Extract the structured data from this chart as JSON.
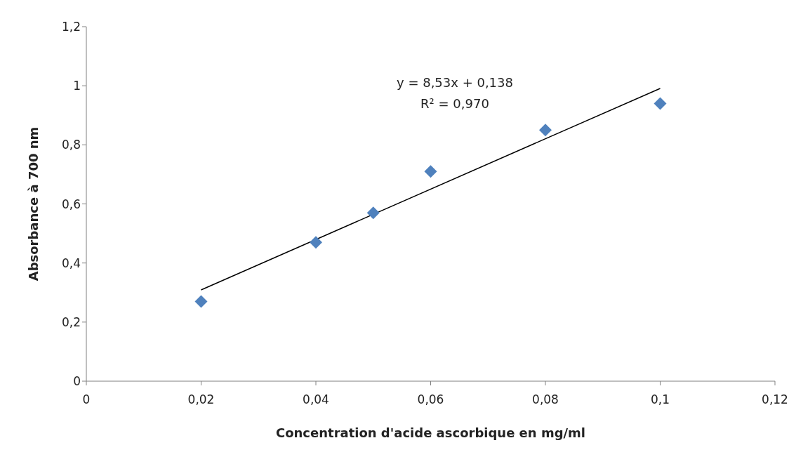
{
  "chart_data": {
    "type": "scatter",
    "xlabel": "Concentration d'acide  ascorbique  en mg/ml",
    "ylabel": "Absorbance  à 700 nm",
    "annotations": [
      "y = 8,53x + 0,138",
      "R² = 0,970"
    ],
    "x": [
      0.02,
      0.04,
      0.05,
      0.06,
      0.08,
      0.1
    ],
    "series": [
      {
        "color": "#4f81bd",
        "values": [
          0.27,
          0.47,
          0.57,
          0.71,
          0.85,
          0.94
        ],
        "marker": "diamond"
      },
      {
        "type": "line",
        "color": "#000000",
        "x": [
          0.02,
          0.1
        ],
        "values": [
          0.309,
          0.991
        ],
        "marker": "none",
        "line_style": "solid"
      }
    ],
    "xlim": [
      0,
      0.12
    ],
    "xticks": [
      0,
      {
        "value": 0.02,
        "label": "0,02"
      },
      {
        "value": 0.04,
        "label": "0,04"
      },
      {
        "value": 0.06,
        "label": "0,06"
      },
      {
        "value": 0.08,
        "label": "0,08"
      },
      {
        "value": 0.1,
        "label": "0,1"
      },
      {
        "value": 0.12,
        "label": "0,12"
      }
    ],
    "ylim": [
      0,
      1.2
    ],
    "yticks": [
      0,
      {
        "value": 0.2,
        "label": "0,2"
      },
      {
        "value": 0.4,
        "label": "0,4"
      },
      {
        "value": 0.6,
        "label": "0,6"
      },
      {
        "value": 0.8,
        "label": "0,8"
      },
      1,
      {
        "value": 1.2,
        "label": "1,2"
      }
    ],
    "grid": false,
    "legend": false
  }
}
